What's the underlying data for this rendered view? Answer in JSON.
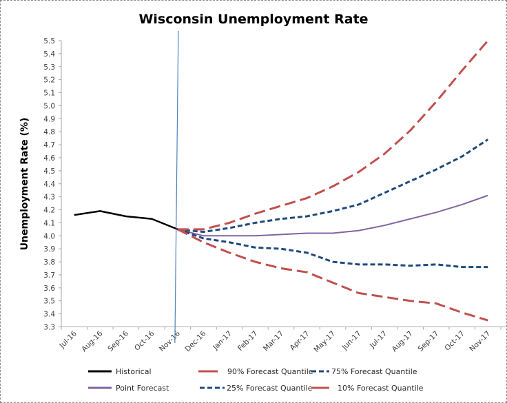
{
  "chart_data": {
    "type": "line",
    "title": "Wisconsin Unemployment Rate",
    "xlabel": "",
    "ylabel": "Unemployment Rate (%)",
    "ylim": [
      3.3,
      5.5
    ],
    "ytick_step": 0.1,
    "grid": false,
    "legend_position": "bottom",
    "categories": [
      "Jul-16",
      "Aug-16",
      "Sep-16",
      "Oct-16",
      "Nov-16",
      "Dec-16",
      "Jan-17",
      "Feb-17",
      "Mar-17",
      "Apr-17",
      "May-17",
      "Jun-17",
      "Jul-17",
      "Aug-17",
      "Sep-17",
      "Oct-17",
      "Nov-17"
    ],
    "ytick_labels": [
      "3.3",
      "3.4",
      "3.5",
      "3.6",
      "3.7",
      "3.8",
      "3.9",
      "4.0",
      "4.1",
      "4.2",
      "4.3",
      "4.4",
      "4.5",
      "4.6",
      "4.7",
      "4.8",
      "4.9",
      "5.0",
      "5.1",
      "5.2",
      "5.3",
      "5.4",
      "5.5"
    ],
    "forecast_start_marker": "Nov-16",
    "series": [
      {
        "name": "Historical",
        "color": "#000000",
        "style": "solid",
        "values": [
          4.16,
          4.19,
          4.15,
          4.13,
          4.05,
          null,
          null,
          null,
          null,
          null,
          null,
          null,
          null,
          null,
          null,
          null,
          null
        ]
      },
      {
        "name": "90% Forecast Quantile",
        "color": "#c0504d",
        "style": "long-dash",
        "values": [
          null,
          null,
          null,
          null,
          4.05,
          4.05,
          4.1,
          4.17,
          4.23,
          4.29,
          4.38,
          4.49,
          4.63,
          4.81,
          5.03,
          5.27,
          5.5
        ]
      },
      {
        "name": "75% Forecast Quantile",
        "color": "#1f497d",
        "style": "short-dash",
        "values": [
          null,
          null,
          null,
          null,
          4.05,
          4.03,
          4.06,
          4.1,
          4.13,
          4.15,
          4.19,
          4.24,
          4.33,
          4.42,
          4.51,
          4.61,
          4.74
        ]
      },
      {
        "name": "Point Forecast",
        "color": "#8064a2",
        "style": "solid",
        "values": [
          null,
          null,
          null,
          null,
          4.05,
          4.0,
          4.0,
          4.0,
          4.01,
          4.02,
          4.02,
          4.04,
          4.08,
          4.13,
          4.18,
          4.24,
          4.31
        ]
      },
      {
        "name": "25% Forecast Quantile",
        "color": "#1f497d",
        "style": "short-dash",
        "values": [
          null,
          null,
          null,
          null,
          4.05,
          3.98,
          3.95,
          3.91,
          3.9,
          3.87,
          3.8,
          3.78,
          3.78,
          3.77,
          3.78,
          3.76,
          3.76
        ]
      },
      {
        "name": "10% Forecast Quantile",
        "color": "#c0504d",
        "style": "long-dash",
        "values": [
          null,
          null,
          null,
          null,
          4.05,
          3.95,
          3.87,
          3.8,
          3.75,
          3.72,
          3.64,
          3.56,
          3.53,
          3.5,
          3.48,
          3.41,
          3.35
        ]
      }
    ],
    "legend": [
      {
        "label": "Historical",
        "series": 0
      },
      {
        "label": "90% Forecast Quantile",
        "series": 1
      },
      {
        "label": "75% Forecast Quantile",
        "series": 2
      },
      {
        "label": "Point Forecast",
        "series": 3
      },
      {
        "label": "25% Forecast Quantile",
        "series": 4
      },
      {
        "label": "10% Forecast Quantile",
        "series": 5
      }
    ],
    "marker_line_color": "#4f81bd"
  }
}
